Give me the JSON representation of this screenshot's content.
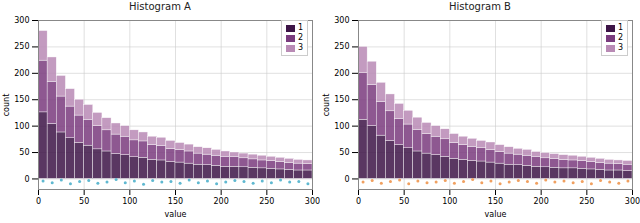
{
  "chart_data": [
    {
      "type": "bar",
      "title": "Histogram A",
      "x_label": "value",
      "y_label": "count",
      "stacked": true,
      "grid": true,
      "legend": "upper right",
      "bins": [
        0,
        10,
        20,
        30,
        40,
        50,
        60,
        70,
        80,
        90,
        100,
        110,
        120,
        130,
        140,
        150,
        160,
        170,
        180,
        190,
        200,
        210,
        220,
        230,
        240,
        250,
        260,
        270,
        280,
        290,
        300
      ],
      "xlim": [
        0,
        300
      ],
      "xticks": [
        0,
        50,
        100,
        150,
        200,
        250,
        300
      ],
      "ylim": [
        -20,
        300
      ],
      "yticks": [
        0,
        50,
        100,
        150,
        200,
        250,
        300
      ],
      "series": [
        {
          "name": "1",
          "color": "#3d1447",
          "values": [
            126,
            104,
            88,
            77,
            68,
            63,
            56,
            52,
            47,
            45,
            41,
            40,
            36,
            35,
            32,
            31,
            29,
            27,
            26,
            25,
            23,
            23,
            22,
            21,
            20,
            19,
            18,
            17,
            16,
            16
          ]
        },
        {
          "name": "2",
          "color": "#7a3b7e",
          "values": [
            98,
            80,
            68,
            60,
            52,
            49,
            44,
            40,
            37,
            35,
            32,
            31,
            28,
            27,
            25,
            24,
            23,
            21,
            20,
            19,
            18,
            18,
            17,
            16,
            15,
            15,
            14,
            13,
            13,
            12
          ]
        },
        {
          "name": "3",
          "color": "#b98ab5",
          "values": [
            56,
            46,
            39,
            33,
            30,
            28,
            25,
            23,
            21,
            20,
            19,
            17,
            16,
            16,
            15,
            13,
            13,
            12,
            12,
            11,
            11,
            9,
            9,
            9,
            9,
            8,
            8,
            8,
            7,
            7
          ]
        }
      ],
      "points": {
        "type": "scatter",
        "color": "#5fb8d0",
        "x": [
          5,
          15,
          25,
          35,
          45,
          55,
          65,
          75,
          85,
          95,
          105,
          115,
          125,
          135,
          145,
          155,
          165,
          175,
          185,
          195,
          205,
          215,
          225,
          235,
          245,
          255,
          265,
          275,
          285,
          295
        ],
        "y": [
          -4,
          -7,
          -2,
          -9,
          -5,
          -3,
          -8,
          -6,
          -1,
          -7,
          -4,
          -10,
          -3,
          -6,
          -5,
          -8,
          -2,
          -7,
          -4,
          -9,
          -6,
          -3,
          -5,
          -8,
          -4,
          -7,
          -2,
          -6,
          -5,
          -9
        ]
      }
    },
    {
      "type": "bar",
      "title": "Histogram B",
      "x_label": "value",
      "y_label": "count",
      "stacked": true,
      "grid": true,
      "legend": "upper right",
      "bins": [
        0,
        10,
        20,
        30,
        40,
        50,
        60,
        70,
        80,
        90,
        100,
        110,
        120,
        130,
        140,
        150,
        160,
        170,
        180,
        190,
        200,
        210,
        220,
        230,
        240,
        250,
        260,
        270,
        280,
        290,
        300
      ],
      "xlim": [
        0,
        300
      ],
      "xticks": [
        0,
        50,
        100,
        150,
        200,
        250,
        300
      ],
      "ylim": [
        -20,
        300
      ],
      "yticks": [
        0,
        50,
        100,
        150,
        200,
        250,
        300
      ],
      "series": [
        {
          "name": "1",
          "color": "#3d1447",
          "values": [
            112,
            100,
            82,
            72,
            64,
            58,
            52,
            48,
            45,
            42,
            38,
            36,
            34,
            33,
            31,
            29,
            27,
            26,
            25,
            23,
            22,
            21,
            20,
            20,
            19,
            18,
            17,
            16,
            16,
            15
          ]
        },
        {
          "name": "2",
          "color": "#7a3b7e",
          "values": [
            88,
            78,
            64,
            56,
            50,
            45,
            41,
            37,
            35,
            33,
            30,
            28,
            27,
            25,
            24,
            22,
            21,
            20,
            19,
            18,
            17,
            17,
            16,
            15,
            15,
            14,
            13,
            13,
            12,
            12
          ]
        },
        {
          "name": "3",
          "color": "#b98ab5",
          "values": [
            50,
            44,
            36,
            32,
            28,
            26,
            23,
            21,
            20,
            19,
            17,
            16,
            15,
            14,
            14,
            13,
            12,
            11,
            11,
            10,
            10,
            9,
            9,
            9,
            8,
            8,
            8,
            7,
            7,
            7
          ]
        }
      ],
      "points": {
        "type": "scatter",
        "color": "#f0a060",
        "x": [
          5,
          15,
          25,
          35,
          45,
          55,
          65,
          75,
          85,
          95,
          105,
          115,
          125,
          135,
          145,
          155,
          165,
          175,
          185,
          195,
          205,
          215,
          225,
          235,
          245,
          255,
          265,
          275,
          285,
          295
        ],
        "y": [
          -6,
          -3,
          -8,
          -5,
          -2,
          -9,
          -4,
          -7,
          -6,
          -3,
          -8,
          -5,
          -1,
          -7,
          -4,
          -9,
          -6,
          -3,
          -5,
          -8,
          -2,
          -6,
          -4,
          -7,
          -5,
          -9,
          -3,
          -6,
          -8,
          -4
        ]
      }
    }
  ]
}
